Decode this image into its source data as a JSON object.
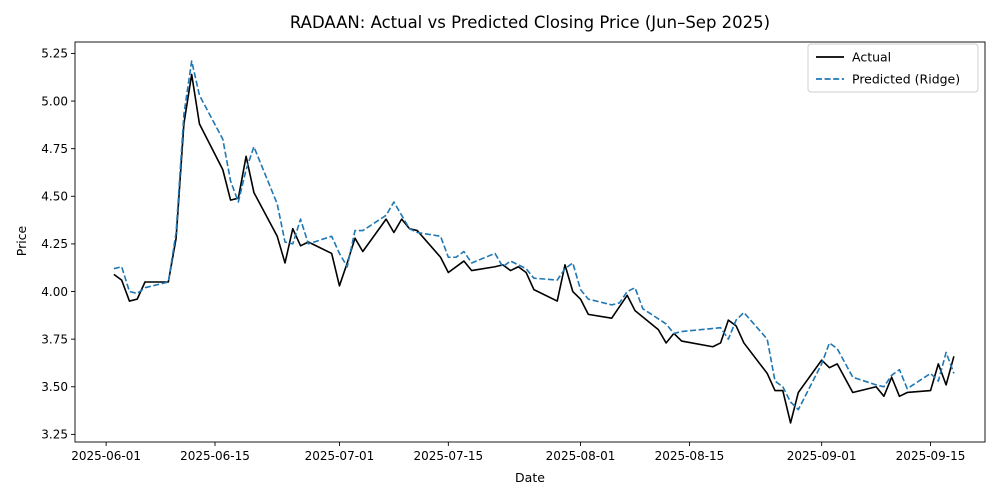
{
  "chart_data": {
    "type": "line",
    "title": "RADAAN: Actual vs Predicted Closing Price (Jun–Sep 2025)",
    "xlabel": "Date",
    "ylabel": "Price",
    "xlim": [
      "2025-05-28",
      "2025-09-22"
    ],
    "ylim": [
      3.21,
      5.31
    ],
    "x_ticks": [
      "2025-06-01",
      "2025-06-15",
      "2025-07-01",
      "2025-07-15",
      "2025-08-01",
      "2025-08-15",
      "2025-09-01",
      "2025-09-15"
    ],
    "y_ticks": [
      "3.25",
      "3.50",
      "3.75",
      "4.00",
      "4.25",
      "4.50",
      "4.75",
      "5.00",
      "5.25"
    ],
    "legend": {
      "position": "upper right"
    },
    "grid": false,
    "series": [
      {
        "name": "Actual",
        "color": "#000000",
        "style": "solid",
        "points": [
          [
            "2025-06-02",
            4.09
          ],
          [
            "2025-06-03",
            4.06
          ],
          [
            "2025-06-04",
            3.95
          ],
          [
            "2025-06-05",
            3.96
          ],
          [
            "2025-06-06",
            4.05
          ],
          [
            "2025-06-09",
            4.05
          ],
          [
            "2025-06-10",
            4.28
          ],
          [
            "2025-06-11",
            4.88
          ],
          [
            "2025-06-12",
            5.14
          ],
          [
            "2025-06-13",
            4.88
          ],
          [
            "2025-06-16",
            4.64
          ],
          [
            "2025-06-17",
            4.48
          ],
          [
            "2025-06-18",
            4.49
          ],
          [
            "2025-06-19",
            4.71
          ],
          [
            "2025-06-20",
            4.52
          ],
          [
            "2025-06-23",
            4.29
          ],
          [
            "2025-06-24",
            4.15
          ],
          [
            "2025-06-25",
            4.33
          ],
          [
            "2025-06-26",
            4.24
          ],
          [
            "2025-06-27",
            4.26
          ],
          [
            "2025-06-30",
            4.2
          ],
          [
            "2025-07-01",
            4.03
          ],
          [
            "2025-07-02",
            4.15
          ],
          [
            "2025-07-03",
            4.28
          ],
          [
            "2025-07-04",
            4.21
          ],
          [
            "2025-07-07",
            4.38
          ],
          [
            "2025-07-08",
            4.31
          ],
          [
            "2025-07-09",
            4.38
          ],
          [
            "2025-07-10",
            4.33
          ],
          [
            "2025-07-11",
            4.32
          ],
          [
            "2025-07-14",
            4.18
          ],
          [
            "2025-07-15",
            4.1
          ],
          [
            "2025-07-17",
            4.16
          ],
          [
            "2025-07-18",
            4.11
          ],
          [
            "2025-07-21",
            4.13
          ],
          [
            "2025-07-22",
            4.14
          ],
          [
            "2025-07-23",
            4.11
          ],
          [
            "2025-07-24",
            4.13
          ],
          [
            "2025-07-25",
            4.1
          ],
          [
            "2025-07-26",
            4.01
          ],
          [
            "2025-07-29",
            3.95
          ],
          [
            "2025-07-30",
            4.14
          ],
          [
            "2025-07-31",
            4.0
          ],
          [
            "2025-08-01",
            3.96
          ],
          [
            "2025-08-02",
            3.88
          ],
          [
            "2025-08-05",
            3.86
          ],
          [
            "2025-08-07",
            3.98
          ],
          [
            "2025-08-08",
            3.9
          ],
          [
            "2025-08-11",
            3.8
          ],
          [
            "2025-08-12",
            3.73
          ],
          [
            "2025-08-13",
            3.78
          ],
          [
            "2025-08-14",
            3.74
          ],
          [
            "2025-08-18",
            3.71
          ],
          [
            "2025-08-19",
            3.73
          ],
          [
            "2025-08-20",
            3.85
          ],
          [
            "2025-08-21",
            3.82
          ],
          [
            "2025-08-22",
            3.73
          ],
          [
            "2025-08-25",
            3.57
          ],
          [
            "2025-08-26",
            3.48
          ],
          [
            "2025-08-27",
            3.48
          ],
          [
            "2025-08-28",
            3.31
          ],
          [
            "2025-08-29",
            3.47
          ],
          [
            "2025-09-01",
            3.64
          ],
          [
            "2025-09-02",
            3.6
          ],
          [
            "2025-09-03",
            3.62
          ],
          [
            "2025-09-05",
            3.47
          ],
          [
            "2025-09-08",
            3.5
          ],
          [
            "2025-09-09",
            3.45
          ],
          [
            "2025-09-10",
            3.55
          ],
          [
            "2025-09-11",
            3.45
          ],
          [
            "2025-09-12",
            3.47
          ],
          [
            "2025-09-15",
            3.48
          ],
          [
            "2025-09-16",
            3.62
          ],
          [
            "2025-09-17",
            3.51
          ],
          [
            "2025-09-18",
            3.66
          ]
        ]
      },
      {
        "name": "Predicted (Ridge)",
        "color": "#1f77b4",
        "style": "dashed",
        "points": [
          [
            "2025-06-02",
            4.12
          ],
          [
            "2025-06-03",
            4.13
          ],
          [
            "2025-06-04",
            4.0
          ],
          [
            "2025-06-05",
            3.99
          ],
          [
            "2025-06-06",
            4.02
          ],
          [
            "2025-06-09",
            4.05
          ],
          [
            "2025-06-10",
            4.31
          ],
          [
            "2025-06-11",
            4.93
          ],
          [
            "2025-06-12",
            5.21
          ],
          [
            "2025-06-13",
            5.03
          ],
          [
            "2025-06-16",
            4.8
          ],
          [
            "2025-06-17",
            4.58
          ],
          [
            "2025-06-18",
            4.47
          ],
          [
            "2025-06-19",
            4.64
          ],
          [
            "2025-06-20",
            4.76
          ],
          [
            "2025-06-23",
            4.46
          ],
          [
            "2025-06-24",
            4.26
          ],
          [
            "2025-06-25",
            4.25
          ],
          [
            "2025-06-26",
            4.38
          ],
          [
            "2025-06-27",
            4.25
          ],
          [
            "2025-06-30",
            4.29
          ],
          [
            "2025-07-01",
            4.2
          ],
          [
            "2025-07-02",
            4.13
          ],
          [
            "2025-07-03",
            4.32
          ],
          [
            "2025-07-04",
            4.32
          ],
          [
            "2025-07-07",
            4.4
          ],
          [
            "2025-07-08",
            4.47
          ],
          [
            "2025-07-09",
            4.4
          ],
          [
            "2025-07-10",
            4.33
          ],
          [
            "2025-07-11",
            4.31
          ],
          [
            "2025-07-14",
            4.29
          ],
          [
            "2025-07-15",
            4.18
          ],
          [
            "2025-07-16",
            4.18
          ],
          [
            "2025-07-17",
            4.21
          ],
          [
            "2025-07-18",
            4.15
          ],
          [
            "2025-07-21",
            4.2
          ],
          [
            "2025-07-22",
            4.13
          ],
          [
            "2025-07-23",
            4.16
          ],
          [
            "2025-07-24",
            4.14
          ],
          [
            "2025-07-25",
            4.12
          ],
          [
            "2025-07-26",
            4.07
          ],
          [
            "2025-07-29",
            4.06
          ],
          [
            "2025-07-30",
            4.12
          ],
          [
            "2025-07-31",
            4.15
          ],
          [
            "2025-08-01",
            4.01
          ],
          [
            "2025-08-02",
            3.96
          ],
          [
            "2025-08-05",
            3.93
          ],
          [
            "2025-08-06",
            3.94
          ],
          [
            "2025-08-07",
            4.0
          ],
          [
            "2025-08-08",
            4.02
          ],
          [
            "2025-08-09",
            3.91
          ],
          [
            "2025-08-12",
            3.83
          ],
          [
            "2025-08-13",
            3.78
          ],
          [
            "2025-08-14",
            3.79
          ],
          [
            "2025-08-19",
            3.81
          ],
          [
            "2025-08-20",
            3.75
          ],
          [
            "2025-08-21",
            3.85
          ],
          [
            "2025-08-22",
            3.89
          ],
          [
            "2025-08-25",
            3.75
          ],
          [
            "2025-08-26",
            3.53
          ],
          [
            "2025-08-27",
            3.5
          ],
          [
            "2025-08-28",
            3.42
          ],
          [
            "2025-08-29",
            3.38
          ],
          [
            "2025-08-30",
            3.46
          ],
          [
            "2025-09-01",
            3.62
          ],
          [
            "2025-09-02",
            3.73
          ],
          [
            "2025-09-03",
            3.7
          ],
          [
            "2025-09-05",
            3.55
          ],
          [
            "2025-09-08",
            3.51
          ],
          [
            "2025-09-09",
            3.5
          ],
          [
            "2025-09-10",
            3.56
          ],
          [
            "2025-09-11",
            3.59
          ],
          [
            "2025-09-12",
            3.49
          ],
          [
            "2025-09-15",
            3.57
          ],
          [
            "2025-09-16",
            3.53
          ],
          [
            "2025-09-17",
            3.68
          ],
          [
            "2025-09-18",
            3.57
          ]
        ]
      }
    ]
  }
}
